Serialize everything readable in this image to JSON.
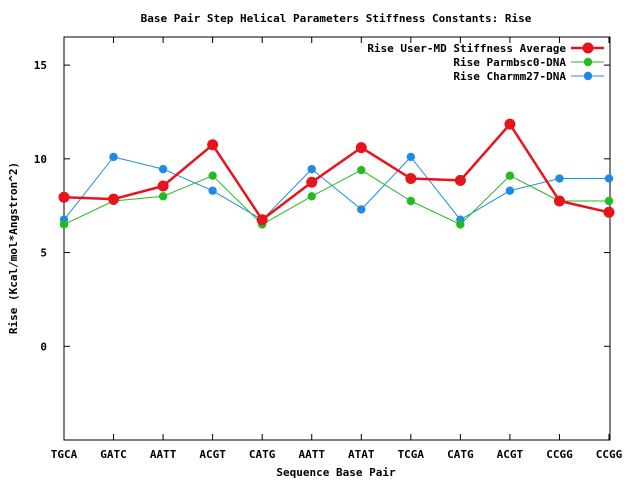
{
  "chart_data": {
    "type": "line",
    "title": "Base Pair Step Helical Parameters Stiffness Constants: Rise",
    "xlabel": "Sequence Base Pair",
    "ylabel": "Rise (Kcal/mol*Angstron^2)",
    "ylim": [
      -5,
      16.5
    ],
    "yticks": [
      0,
      5,
      10,
      15
    ],
    "categories": [
      "TGCA",
      "GATC",
      "AATT",
      "ACGT",
      "CATG",
      "AATT",
      "ATAT",
      "TCGA",
      "CATG",
      "ACGT",
      "CCGG",
      "CCGG"
    ],
    "legend_position": "top-right",
    "grid": false,
    "series": [
      {
        "name": "Rise User-MD Stiffness Average",
        "color": "#e8141c",
        "line_width": 2.5,
        "marker_size": 5.5,
        "values": [
          7.95,
          7.85,
          8.55,
          10.75,
          6.75,
          8.75,
          10.6,
          8.95,
          8.85,
          11.85,
          7.75,
          7.15
        ]
      },
      {
        "name": "Rise Parmbsc0-DNA",
        "color": "#22bb22",
        "line_width": 1,
        "marker_size": 4.2,
        "values": [
          6.5,
          7.75,
          8.0,
          9.1,
          6.5,
          8.0,
          9.4,
          7.75,
          6.5,
          9.1,
          7.75,
          7.75
        ]
      },
      {
        "name": "Rise Charmm27-DNA",
        "color": "#1c8be8",
        "line_width": 1,
        "marker_size": 4.2,
        "values": [
          6.75,
          10.1,
          9.45,
          8.3,
          6.75,
          9.45,
          7.3,
          10.1,
          6.75,
          8.3,
          8.95,
          8.95
        ]
      }
    ]
  }
}
